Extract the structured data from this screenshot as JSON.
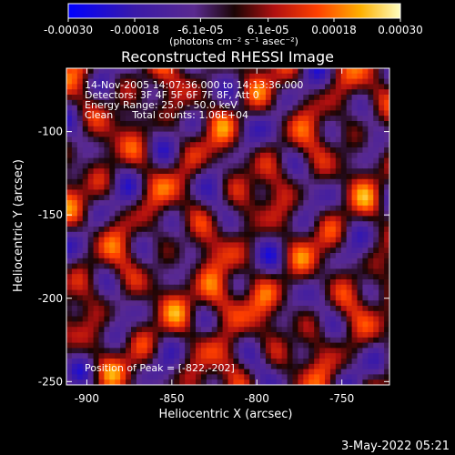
{
  "chart_data": {
    "type": "heatmap",
    "title": "Reconstructed RHESSI Image",
    "xlabel": "Heliocentric X (arcsec)",
    "ylabel": "Heliocentric Y (arcsec)",
    "xlim": [
      -912,
      -722
    ],
    "ylim": [
      -252,
      -62
    ],
    "x_ticks": [
      "-900",
      "-850",
      "-800",
      "-750"
    ],
    "x_tick_values": [
      -900,
      -850,
      -800,
      -750
    ],
    "y_ticks": [
      "-100",
      "-150",
      "-200",
      "-250"
    ],
    "y_tick_values": [
      -100,
      -150,
      -200,
      -250
    ],
    "colorbar": {
      "range": [
        -0.0003,
        0.0003
      ],
      "tick_labels": [
        "-0.00030",
        "-0.00018",
        "-6.1e-05",
        "6.1e-05",
        "0.00018",
        "0.00030"
      ],
      "tick_values": [
        -0.0003,
        -0.00018,
        -6.1e-05,
        6.1e-05,
        0.00018,
        0.0003
      ],
      "unit_label": "(photons cm⁻² s⁻¹ asec⁻²)",
      "colors": [
        "#0000ff",
        "#3a1aa8",
        "#5a2a8f",
        "#1a0505",
        "#b01010",
        "#ff4000",
        "#ffb000",
        "#ffffc0"
      ]
    },
    "peak": [
      -822,
      -202
    ],
    "annotations": {
      "line1": "14-Nov-2005 14:07:36.000 to 14:13:36.000",
      "line2": "Detectors: 3F 4F 5F 6F 7F 8F, Att 0",
      "line3": "Energy Range: 25.0 - 50.0 keV",
      "line4": "Clean      Total counts: 1.06E+04",
      "peak_text": "Position of Peak = [-822,-202]"
    },
    "grid": false
  },
  "footer": {
    "timestamp": "3-May-2022 05:21"
  }
}
